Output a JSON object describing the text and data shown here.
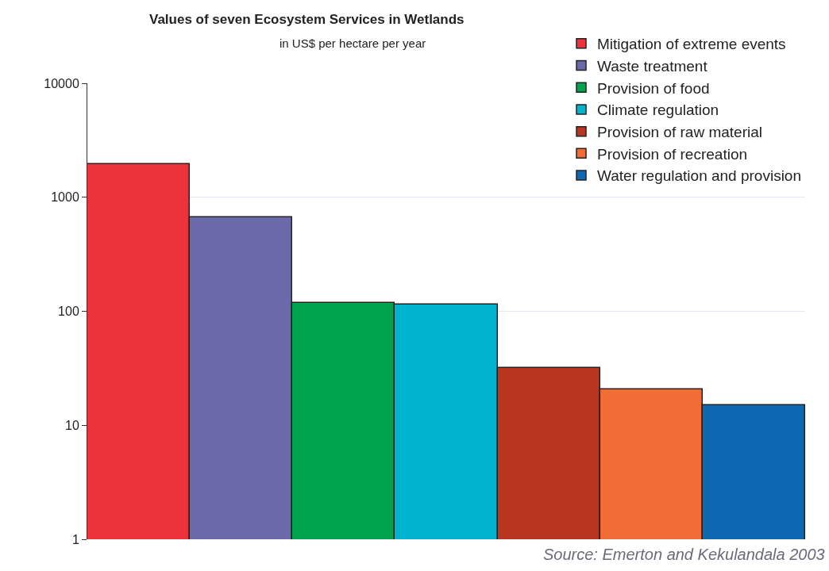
{
  "chart_data": {
    "type": "bar",
    "title": "Values of seven Ecosystem Services in Wetlands",
    "subtitle": "in US$ per hectare per year",
    "categories": [
      null,
      null,
      null,
      null,
      null,
      null,
      null
    ],
    "series": [
      {
        "name": "Mitigation of extreme events",
        "color": "#ec333b",
        "values": [
          1950,
          null,
          null,
          null,
          null,
          null,
          null
        ]
      },
      {
        "name": "Waste treatment",
        "color": "#6a6aaa",
        "values": [
          null,
          670,
          null,
          null,
          null,
          null,
          null
        ]
      },
      {
        "name": "Provision of food",
        "color": "#00a34e",
        "values": [
          null,
          null,
          119,
          null,
          null,
          null,
          null
        ]
      },
      {
        "name": "Climate regulation",
        "color": "#00b4d0",
        "values": [
          null,
          null,
          null,
          115,
          null,
          null,
          null
        ]
      },
      {
        "name": "Provision of raw material",
        "color": "#b93520",
        "values": [
          null,
          null,
          null,
          null,
          32,
          null,
          null
        ]
      },
      {
        "name": "Provision of recreation",
        "color": "#f26c36",
        "values": [
          null,
          null,
          null,
          null,
          null,
          20.5,
          null
        ]
      },
      {
        "name": "Water regulation and provision",
        "color": "#0f68b2",
        "values": [
          null,
          null,
          null,
          null,
          null,
          null,
          15
        ]
      }
    ],
    "log": "y",
    "ylim": [
      1,
      10000
    ],
    "yticks": [
      1,
      10,
      100,
      1000,
      10000
    ],
    "grid": "y",
    "legend": "top right",
    "annotations": [
      "Source: Emerton and Kekulandala 2003"
    ]
  }
}
